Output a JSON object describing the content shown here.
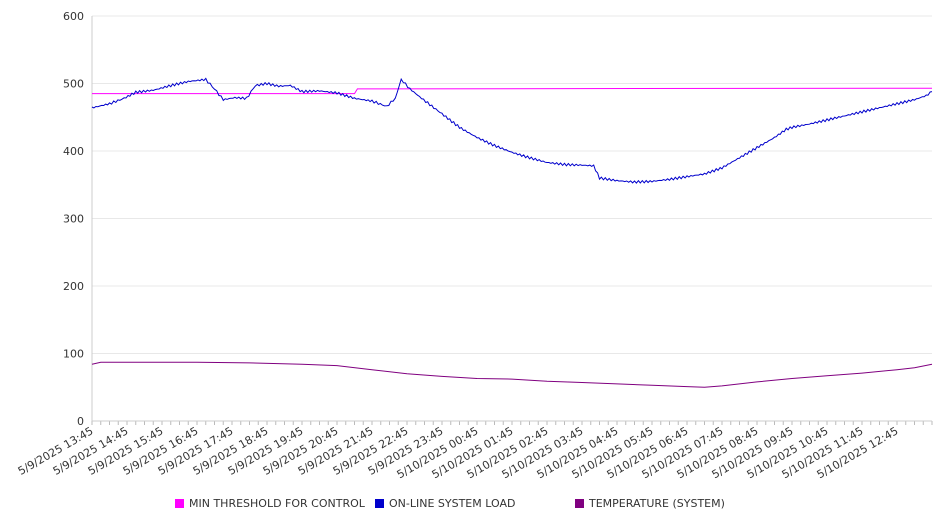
{
  "chart_data": {
    "type": "line",
    "title": "",
    "xlabel": "",
    "ylabel": "",
    "ylim": [
      0,
      600
    ],
    "y_ticks": [
      0,
      100,
      200,
      300,
      400,
      500,
      600
    ],
    "grid": true,
    "legend_placement": "bottom",
    "x_tick_labels": [
      "5/9/2025 13:45",
      "5/9/2025 14:45",
      "5/9/2025 15:45",
      "5/9/2025 16:45",
      "5/9/2025 17:45",
      "5/9/2025 18:45",
      "5/9/2025 19:45",
      "5/9/2025 20:45",
      "5/9/2025 21:45",
      "5/9/2025 22:45",
      "5/9/2025 23:45",
      "5/10/2025 00:45",
      "5/10/2025 01:45",
      "5/10/2025 02:45",
      "5/10/2025 03:45",
      "5/10/2025 04:45",
      "5/10/2025 05:45",
      "5/10/2025 06:45",
      "5/10/2025 07:45",
      "5/10/2025 08:45",
      "5/10/2025 09:45",
      "5/10/2025 10:45",
      "5/10/2025 11:45",
      "5/10/2025 12:45"
    ],
    "x_range": [
      "5/9/2025 13:45",
      "5/10/2025 13:45"
    ],
    "series": [
      {
        "name": "MIN THRESHOLD FOR CONTROL",
        "color": "#ff00ff",
        "points": [
          [
            "5/9/2025 13:45",
            485
          ],
          [
            "5/9/2025 21:15",
            485
          ],
          [
            "5/9/2025 21:20",
            492
          ],
          [
            "5/10/2025 13:45",
            493
          ]
        ]
      },
      {
        "name": "ON-LINE SYSTEM LOAD",
        "color": "#0000cc",
        "points": [
          [
            "5/9/2025 13:45",
            464
          ],
          [
            "5/9/2025 14:15",
            470
          ],
          [
            "5/9/2025 14:40",
            478
          ],
          [
            "5/9/2025 15:00",
            487
          ],
          [
            "5/9/2025 15:30",
            490
          ],
          [
            "5/9/2025 16:00",
            497
          ],
          [
            "5/9/2025 16:30",
            503
          ],
          [
            "5/9/2025 17:00",
            506
          ],
          [
            "5/9/2025 17:15",
            492
          ],
          [
            "5/9/2025 17:30",
            476
          ],
          [
            "5/9/2025 17:50",
            479
          ],
          [
            "5/9/2025 18:10",
            478
          ],
          [
            "5/9/2025 18:25",
            497
          ],
          [
            "5/9/2025 18:45",
            500
          ],
          [
            "5/9/2025 19:05",
            496
          ],
          [
            "5/9/2025 19:25",
            497
          ],
          [
            "5/9/2025 19:45",
            488
          ],
          [
            "5/9/2025 20:15",
            489
          ],
          [
            "5/9/2025 20:45",
            486
          ],
          [
            "5/9/2025 21:15",
            478
          ],
          [
            "5/9/2025 21:45",
            474
          ],
          [
            "5/9/2025 22:10",
            466
          ],
          [
            "5/9/2025 22:25",
            478
          ],
          [
            "5/9/2025 22:35",
            506
          ],
          [
            "5/9/2025 22:50",
            492
          ],
          [
            "5/9/2025 23:10",
            478
          ],
          [
            "5/9/2025 23:45",
            455
          ],
          [
            "5/10/2025 00:15",
            435
          ],
          [
            "5/10/2025 00:45",
            420
          ],
          [
            "5/10/2025 01:15",
            408
          ],
          [
            "5/10/2025 01:45",
            398
          ],
          [
            "5/10/2025 02:15",
            390
          ],
          [
            "5/10/2025 02:45",
            383
          ],
          [
            "5/10/2025 03:15",
            380
          ],
          [
            "5/10/2025 03:45",
            379
          ],
          [
            "5/10/2025 04:05",
            378
          ],
          [
            "5/10/2025 04:15",
            360
          ],
          [
            "5/10/2025 04:45",
            356
          ],
          [
            "5/10/2025 05:15",
            354
          ],
          [
            "5/10/2025 05:45",
            355
          ],
          [
            "5/10/2025 06:15",
            358
          ],
          [
            "5/10/2025 06:45",
            362
          ],
          [
            "5/10/2025 07:15",
            366
          ],
          [
            "5/10/2025 07:45",
            375
          ],
          [
            "5/10/2025 08:15",
            390
          ],
          [
            "5/10/2025 08:45",
            405
          ],
          [
            "5/10/2025 09:15",
            420
          ],
          [
            "5/10/2025 09:35",
            432
          ],
          [
            "5/10/2025 09:45",
            435
          ],
          [
            "5/10/2025 10:15",
            440
          ],
          [
            "5/10/2025 10:45",
            446
          ],
          [
            "5/10/2025 11:15",
            452
          ],
          [
            "5/10/2025 11:45",
            458
          ],
          [
            "5/10/2025 12:15",
            464
          ],
          [
            "5/10/2025 12:45",
            470
          ],
          [
            "5/10/2025 13:15",
            476
          ],
          [
            "5/10/2025 13:35",
            482
          ],
          [
            "5/10/2025 13:45",
            488
          ]
        ]
      },
      {
        "name": "TEMPERATURE (SYSTEM)",
        "color": "#800080",
        "points": [
          [
            "5/9/2025 13:45",
            84
          ],
          [
            "5/9/2025 14:00",
            87
          ],
          [
            "5/9/2025 16:45",
            87
          ],
          [
            "5/9/2025 18:15",
            86
          ],
          [
            "5/9/2025 19:45",
            84
          ],
          [
            "5/9/2025 20:45",
            82
          ],
          [
            "5/9/2025 21:45",
            76
          ],
          [
            "5/9/2025 22:45",
            70
          ],
          [
            "5/9/2025 23:45",
            66
          ],
          [
            "5/10/2025 00:45",
            63
          ],
          [
            "5/10/2025 01:45",
            62
          ],
          [
            "5/10/2025 02:45",
            59
          ],
          [
            "5/10/2025 03:45",
            57
          ],
          [
            "5/10/2025 04:45",
            55
          ],
          [
            "5/10/2025 05:45",
            53
          ],
          [
            "5/10/2025 06:45",
            51
          ],
          [
            "5/10/2025 07:15",
            50
          ],
          [
            "5/10/2025 07:45",
            52
          ],
          [
            "5/10/2025 08:45",
            58
          ],
          [
            "5/10/2025 09:45",
            63
          ],
          [
            "5/10/2025 10:45",
            67
          ],
          [
            "5/10/2025 11:45",
            71
          ],
          [
            "5/10/2025 12:45",
            76
          ],
          [
            "5/10/2025 13:15",
            79
          ],
          [
            "5/10/2025 13:45",
            84
          ]
        ]
      }
    ]
  }
}
